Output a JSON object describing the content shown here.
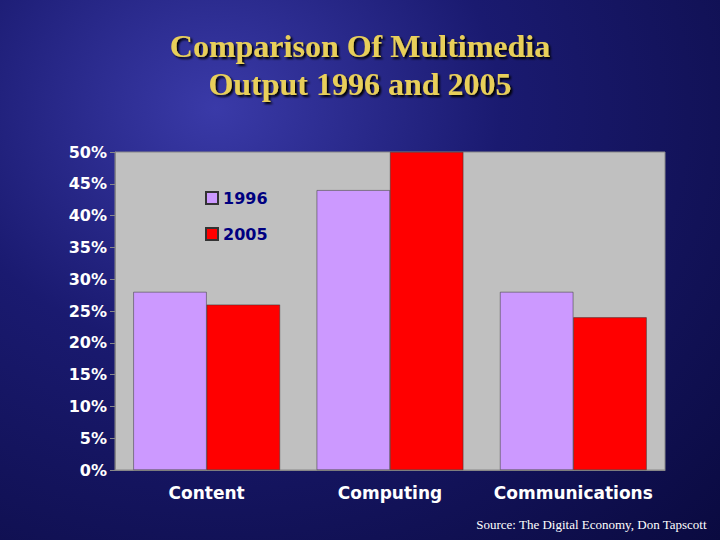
{
  "chart_data": {
    "type": "bar",
    "title": "Comparison Of Multimedia\nOutput 1996 and 2005",
    "annotations": [
      "Source: The Digital Economy, Don Tapscott"
    ],
    "categories": [
      "Content",
      "Computing",
      "Communications"
    ],
    "series": [
      {
        "name": "1996",
        "color": "#cc99ff",
        "values": [
          28,
          44,
          28
        ]
      },
      {
        "name": "2005",
        "color": "#ff0000",
        "values": [
          26,
          50,
          24
        ]
      }
    ],
    "ylim": [
      0,
      50
    ],
    "yticks": [
      {
        "value": 0,
        "label": "0%"
      },
      {
        "value": 5,
        "label": "5%"
      },
      {
        "value": 10,
        "label": "10%"
      },
      {
        "value": 15,
        "label": "15%"
      },
      {
        "value": 20,
        "label": "20%"
      },
      {
        "value": 25,
        "label": "25%"
      },
      {
        "value": 30,
        "label": "30%"
      },
      {
        "value": 35,
        "label": "35%"
      },
      {
        "value": 40,
        "label": "40%"
      },
      {
        "value": 45,
        "label": "45%"
      },
      {
        "value": 50,
        "label": "50%"
      }
    ],
    "grid": false,
    "legend": "upper left"
  }
}
